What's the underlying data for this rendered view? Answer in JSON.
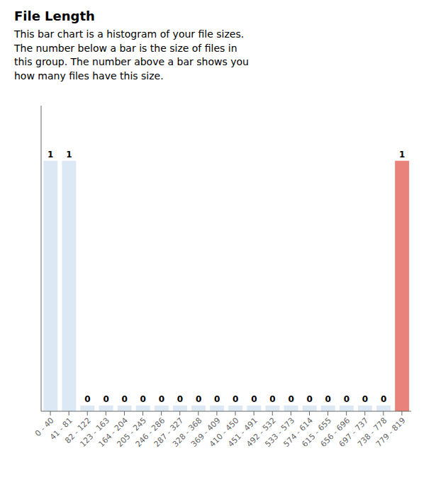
{
  "chart_data": {
    "type": "bar",
    "title": "File Length",
    "subtitle": "This bar chart is a histogram of your file sizes.\nThe number below a bar is the size of files in\nthis group. The number above a bar shows you\nhow many files have this size.",
    "categories": [
      "0 - 40",
      "41 - 81",
      "82 - 122",
      "123 - 163",
      "164 - 204",
      "205 - 245",
      "246 - 286",
      "287 - 327",
      "328 - 368",
      "369 - 409",
      "410 - 450",
      "451 - 491",
      "492 - 532",
      "533 - 573",
      "574 - 614",
      "615 - 655",
      "656 - 696",
      "697 - 737",
      "738 - 778",
      "779 - 819"
    ],
    "values": [
      1,
      1,
      0,
      0,
      0,
      0,
      0,
      0,
      0,
      0,
      0,
      0,
      0,
      0,
      0,
      0,
      0,
      0,
      0,
      1
    ],
    "colors": [
      "#dce9f5",
      "#dce9f5",
      "#dce9f5",
      "#dce9f5",
      "#dce9f5",
      "#dce9f5",
      "#dce9f5",
      "#dce9f5",
      "#dce9f5",
      "#dce9f5",
      "#dce9f5",
      "#dce9f5",
      "#dce9f5",
      "#dce9f5",
      "#dce9f5",
      "#dce9f5",
      "#dce9f5",
      "#dce9f5",
      "#dce9f5",
      "#e8827a"
    ],
    "ylim": [
      0,
      1.22
    ],
    "grid": false,
    "data_labels": true,
    "tick_labels": "x"
  }
}
